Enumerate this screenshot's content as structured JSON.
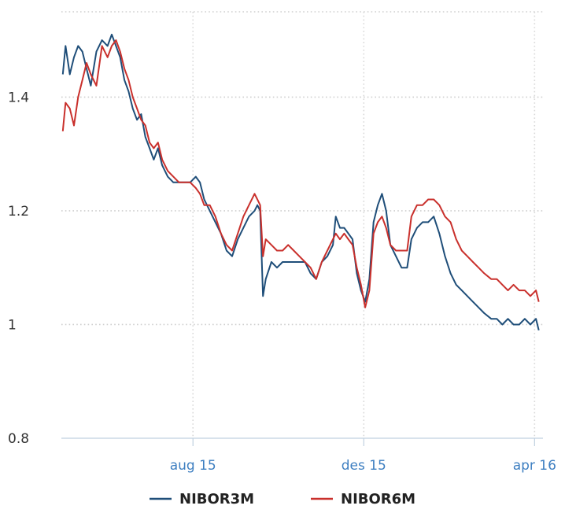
{
  "chart_data": {
    "type": "line",
    "title": "",
    "xlabel": "",
    "ylabel": "",
    "ylim": [
      0.8,
      1.55
    ],
    "xlim": [
      "2015-04-29",
      "2016-04-07"
    ],
    "y_ticks": [
      {
        "value": 0.8,
        "label": "0.8"
      },
      {
        "value": 1.0,
        "label": "1"
      },
      {
        "value": 1.2,
        "label": "1.2"
      },
      {
        "value": 1.4,
        "label": "1.4"
      }
    ],
    "x_ticks": [
      {
        "date": "2015-08-01",
        "label": "aug 15"
      },
      {
        "date": "2015-12-01",
        "label": "des 15"
      },
      {
        "date": "2016-04-01",
        "label": "apr 16"
      }
    ],
    "grid": "dotted",
    "legend_position": "bottom-center",
    "series": [
      {
        "name": "NIBOR3M",
        "color": "#1f4e79",
        "points": [
          [
            "2015-04-30",
            1.44
          ],
          [
            "2015-05-02",
            1.49
          ],
          [
            "2015-05-05",
            1.44
          ],
          [
            "2015-05-08",
            1.47
          ],
          [
            "2015-05-11",
            1.49
          ],
          [
            "2015-05-14",
            1.48
          ],
          [
            "2015-05-17",
            1.45
          ],
          [
            "2015-05-20",
            1.42
          ],
          [
            "2015-05-24",
            1.48
          ],
          [
            "2015-05-28",
            1.5
          ],
          [
            "2015-06-01",
            1.49
          ],
          [
            "2015-06-04",
            1.51
          ],
          [
            "2015-06-07",
            1.49
          ],
          [
            "2015-06-10",
            1.47
          ],
          [
            "2015-06-13",
            1.43
          ],
          [
            "2015-06-16",
            1.41
          ],
          [
            "2015-06-19",
            1.38
          ],
          [
            "2015-06-22",
            1.36
          ],
          [
            "2015-06-25",
            1.37
          ],
          [
            "2015-06-28",
            1.33
          ],
          [
            "2015-07-01",
            1.31
          ],
          [
            "2015-07-04",
            1.29
          ],
          [
            "2015-07-07",
            1.31
          ],
          [
            "2015-07-10",
            1.28
          ],
          [
            "2015-07-14",
            1.26
          ],
          [
            "2015-07-18",
            1.25
          ],
          [
            "2015-07-22",
            1.25
          ],
          [
            "2015-07-26",
            1.25
          ],
          [
            "2015-07-30",
            1.25
          ],
          [
            "2015-08-03",
            1.26
          ],
          [
            "2015-08-06",
            1.25
          ],
          [
            "2015-08-09",
            1.22
          ],
          [
            "2015-08-13",
            1.2
          ],
          [
            "2015-08-17",
            1.18
          ],
          [
            "2015-08-21",
            1.16
          ],
          [
            "2015-08-25",
            1.13
          ],
          [
            "2015-08-29",
            1.12
          ],
          [
            "2015-09-02",
            1.15
          ],
          [
            "2015-09-06",
            1.17
          ],
          [
            "2015-09-10",
            1.19
          ],
          [
            "2015-09-14",
            1.2
          ],
          [
            "2015-09-16",
            1.21
          ],
          [
            "2015-09-18",
            1.2
          ],
          [
            "2015-09-20",
            1.05
          ],
          [
            "2015-09-22",
            1.08
          ],
          [
            "2015-09-26",
            1.11
          ],
          [
            "2015-09-30",
            1.1
          ],
          [
            "2015-10-04",
            1.11
          ],
          [
            "2015-10-08",
            1.11
          ],
          [
            "2015-10-12",
            1.11
          ],
          [
            "2015-10-16",
            1.11
          ],
          [
            "2015-10-20",
            1.11
          ],
          [
            "2015-10-24",
            1.09
          ],
          [
            "2015-10-28",
            1.08
          ],
          [
            "2015-11-01",
            1.11
          ],
          [
            "2015-11-05",
            1.12
          ],
          [
            "2015-11-09",
            1.14
          ],
          [
            "2015-11-11",
            1.19
          ],
          [
            "2015-11-14",
            1.17
          ],
          [
            "2015-11-17",
            1.17
          ],
          [
            "2015-11-20",
            1.16
          ],
          [
            "2015-11-23",
            1.15
          ],
          [
            "2015-11-26",
            1.09
          ],
          [
            "2015-11-29",
            1.06
          ],
          [
            "2015-12-02",
            1.04
          ],
          [
            "2015-12-05",
            1.08
          ],
          [
            "2015-12-08",
            1.18
          ],
          [
            "2015-12-11",
            1.21
          ],
          [
            "2015-12-14",
            1.23
          ],
          [
            "2015-12-17",
            1.2
          ],
          [
            "2015-12-20",
            1.14
          ],
          [
            "2015-12-24",
            1.12
          ],
          [
            "2015-12-28",
            1.1
          ],
          [
            "2016-01-01",
            1.1
          ],
          [
            "2016-01-04",
            1.15
          ],
          [
            "2016-01-08",
            1.17
          ],
          [
            "2016-01-12",
            1.18
          ],
          [
            "2016-01-16",
            1.18
          ],
          [
            "2016-01-20",
            1.19
          ],
          [
            "2016-01-24",
            1.16
          ],
          [
            "2016-01-28",
            1.12
          ],
          [
            "2016-02-01",
            1.09
          ],
          [
            "2016-02-05",
            1.07
          ],
          [
            "2016-02-09",
            1.06
          ],
          [
            "2016-02-13",
            1.05
          ],
          [
            "2016-02-17",
            1.04
          ],
          [
            "2016-02-21",
            1.03
          ],
          [
            "2016-02-25",
            1.02
          ],
          [
            "2016-03-01",
            1.01
          ],
          [
            "2016-03-05",
            1.01
          ],
          [
            "2016-03-09",
            1.0
          ],
          [
            "2016-03-13",
            1.01
          ],
          [
            "2016-03-17",
            1.0
          ],
          [
            "2016-03-21",
            1.0
          ],
          [
            "2016-03-25",
            1.01
          ],
          [
            "2016-03-29",
            1.0
          ],
          [
            "2016-04-02",
            1.01
          ],
          [
            "2016-04-04",
            0.99
          ]
        ]
      },
      {
        "name": "NIBOR6M",
        "color": "#c9302c",
        "points": [
          [
            "2015-04-30",
            1.34
          ],
          [
            "2015-05-02",
            1.39
          ],
          [
            "2015-05-05",
            1.38
          ],
          [
            "2015-05-08",
            1.35
          ],
          [
            "2015-05-11",
            1.4
          ],
          [
            "2015-05-14",
            1.43
          ],
          [
            "2015-05-17",
            1.46
          ],
          [
            "2015-05-20",
            1.44
          ],
          [
            "2015-05-24",
            1.42
          ],
          [
            "2015-05-28",
            1.49
          ],
          [
            "2015-06-01",
            1.47
          ],
          [
            "2015-06-04",
            1.49
          ],
          [
            "2015-06-07",
            1.5
          ],
          [
            "2015-06-10",
            1.48
          ],
          [
            "2015-06-13",
            1.45
          ],
          [
            "2015-06-16",
            1.43
          ],
          [
            "2015-06-19",
            1.4
          ],
          [
            "2015-06-22",
            1.38
          ],
          [
            "2015-06-25",
            1.36
          ],
          [
            "2015-06-28",
            1.35
          ],
          [
            "2015-07-01",
            1.32
          ],
          [
            "2015-07-04",
            1.31
          ],
          [
            "2015-07-07",
            1.32
          ],
          [
            "2015-07-10",
            1.29
          ],
          [
            "2015-07-14",
            1.27
          ],
          [
            "2015-07-18",
            1.26
          ],
          [
            "2015-07-22",
            1.25
          ],
          [
            "2015-07-26",
            1.25
          ],
          [
            "2015-07-30",
            1.25
          ],
          [
            "2015-08-03",
            1.24
          ],
          [
            "2015-08-06",
            1.23
          ],
          [
            "2015-08-09",
            1.21
          ],
          [
            "2015-08-13",
            1.21
          ],
          [
            "2015-08-17",
            1.19
          ],
          [
            "2015-08-21",
            1.16
          ],
          [
            "2015-08-25",
            1.14
          ],
          [
            "2015-08-29",
            1.13
          ],
          [
            "2015-09-02",
            1.16
          ],
          [
            "2015-09-06",
            1.19
          ],
          [
            "2015-09-10",
            1.21
          ],
          [
            "2015-09-14",
            1.23
          ],
          [
            "2015-09-16",
            1.22
          ],
          [
            "2015-09-18",
            1.21
          ],
          [
            "2015-09-20",
            1.12
          ],
          [
            "2015-09-22",
            1.15
          ],
          [
            "2015-09-26",
            1.14
          ],
          [
            "2015-09-30",
            1.13
          ],
          [
            "2015-10-04",
            1.13
          ],
          [
            "2015-10-08",
            1.14
          ],
          [
            "2015-10-12",
            1.13
          ],
          [
            "2015-10-16",
            1.12
          ],
          [
            "2015-10-20",
            1.11
          ],
          [
            "2015-10-24",
            1.1
          ],
          [
            "2015-10-28",
            1.08
          ],
          [
            "2015-11-01",
            1.11
          ],
          [
            "2015-11-05",
            1.13
          ],
          [
            "2015-11-09",
            1.15
          ],
          [
            "2015-11-11",
            1.16
          ],
          [
            "2015-11-14",
            1.15
          ],
          [
            "2015-11-17",
            1.16
          ],
          [
            "2015-11-20",
            1.15
          ],
          [
            "2015-11-23",
            1.14
          ],
          [
            "2015-11-26",
            1.1
          ],
          [
            "2015-11-29",
            1.07
          ],
          [
            "2015-12-02",
            1.03
          ],
          [
            "2015-12-05",
            1.06
          ],
          [
            "2015-12-08",
            1.16
          ],
          [
            "2015-12-11",
            1.18
          ],
          [
            "2015-12-14",
            1.19
          ],
          [
            "2015-12-17",
            1.17
          ],
          [
            "2015-12-20",
            1.14
          ],
          [
            "2015-12-24",
            1.13
          ],
          [
            "2015-12-28",
            1.13
          ],
          [
            "2016-01-01",
            1.13
          ],
          [
            "2016-01-04",
            1.19
          ],
          [
            "2016-01-08",
            1.21
          ],
          [
            "2016-01-12",
            1.21
          ],
          [
            "2016-01-16",
            1.22
          ],
          [
            "2016-01-20",
            1.22
          ],
          [
            "2016-01-24",
            1.21
          ],
          [
            "2016-01-28",
            1.19
          ],
          [
            "2016-02-01",
            1.18
          ],
          [
            "2016-02-05",
            1.15
          ],
          [
            "2016-02-09",
            1.13
          ],
          [
            "2016-02-13",
            1.12
          ],
          [
            "2016-02-17",
            1.11
          ],
          [
            "2016-02-21",
            1.1
          ],
          [
            "2016-02-25",
            1.09
          ],
          [
            "2016-03-01",
            1.08
          ],
          [
            "2016-03-05",
            1.08
          ],
          [
            "2016-03-09",
            1.07
          ],
          [
            "2016-03-13",
            1.06
          ],
          [
            "2016-03-17",
            1.07
          ],
          [
            "2016-03-21",
            1.06
          ],
          [
            "2016-03-25",
            1.06
          ],
          [
            "2016-03-29",
            1.05
          ],
          [
            "2016-04-02",
            1.06
          ],
          [
            "2016-04-04",
            1.04
          ]
        ]
      }
    ]
  }
}
